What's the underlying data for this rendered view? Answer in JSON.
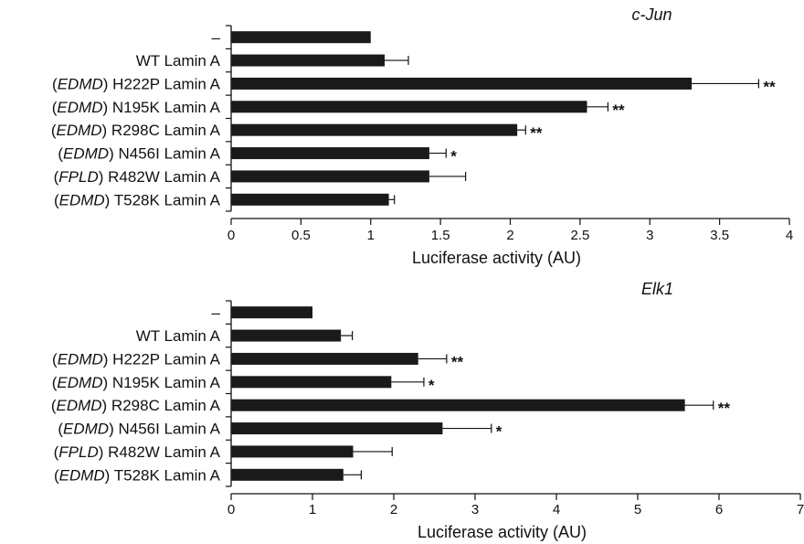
{
  "chart_data": [
    {
      "type": "bar",
      "orientation": "horizontal",
      "title": "c-Jun",
      "xlabel": "Luciferase activity (AU)",
      "categories": [
        {
          "prefix": "",
          "tag": "",
          "main": "–"
        },
        {
          "prefix": "",
          "tag": "",
          "main": "WT Lamin A"
        },
        {
          "prefix": "(",
          "tag": "EDMD",
          "main": ") H222P Lamin A"
        },
        {
          "prefix": "(",
          "tag": "EDMD",
          "main": ") N195K Lamin A"
        },
        {
          "prefix": "(",
          "tag": "EDMD",
          "main": ") R298C Lamin A"
        },
        {
          "prefix": "(",
          "tag": "EDMD",
          "main": ") N456I Lamin A"
        },
        {
          "prefix": "(",
          "tag": "FPLD",
          "main": ") R482W Lamin A"
        },
        {
          "prefix": "(",
          "tag": "EDMD",
          "main": ") T528K Lamin A"
        }
      ],
      "values": [
        1.0,
        1.1,
        3.3,
        2.55,
        2.05,
        1.42,
        1.42,
        1.13
      ],
      "errors": [
        0,
        0.17,
        0.48,
        0.15,
        0.06,
        0.12,
        0.26,
        0.04
      ],
      "significance": [
        "",
        "",
        "**",
        "**",
        "**",
        "*",
        "",
        ""
      ],
      "xlim": [
        0,
        4
      ],
      "xticks": [
        "0",
        "0.5",
        "1",
        "1.5",
        "2",
        "2.5",
        "3",
        "3.5",
        "4"
      ],
      "bar_color": "#1a1a1a"
    },
    {
      "type": "bar",
      "orientation": "horizontal",
      "title": "Elk1",
      "xlabel": "Luciferase activity (AU)",
      "categories": [
        {
          "prefix": "",
          "tag": "",
          "main": "–"
        },
        {
          "prefix": "",
          "tag": "",
          "main": "WT Lamin A"
        },
        {
          "prefix": "(",
          "tag": "EDMD",
          "main": ") H222P Lamin A"
        },
        {
          "prefix": "(",
          "tag": "EDMD",
          "main": ") N195K Lamin A"
        },
        {
          "prefix": "(",
          "tag": "EDMD",
          "main": ") R298C Lamin A"
        },
        {
          "prefix": "(",
          "tag": "EDMD",
          "main": ") N456I Lamin A"
        },
        {
          "prefix": "(",
          "tag": "FPLD",
          "main": ") R482W Lamin A"
        },
        {
          "prefix": "(",
          "tag": "EDMD",
          "main": ") T528K Lamin A"
        }
      ],
      "values": [
        1.0,
        1.35,
        2.3,
        1.97,
        5.58,
        2.6,
        1.5,
        1.38
      ],
      "errors": [
        0,
        0.14,
        0.35,
        0.4,
        0.35,
        0.6,
        0.48,
        0.22
      ],
      "significance": [
        "",
        "",
        "**",
        "*",
        "**",
        "*",
        "",
        ""
      ],
      "xlim": [
        0,
        7
      ],
      "xticks": [
        "0",
        "1",
        "2",
        "3",
        "4",
        "5",
        "6",
        "7"
      ],
      "bar_color": "#1a1a1a"
    }
  ]
}
